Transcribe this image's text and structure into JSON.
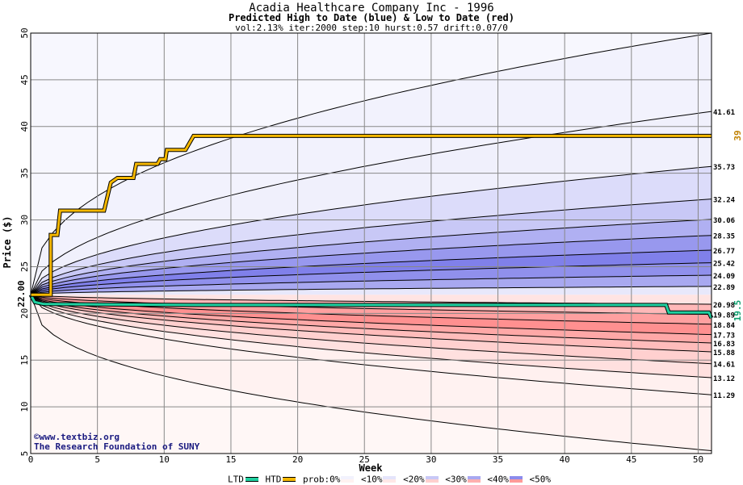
{
  "chart_data": {
    "type": "area",
    "title": "Acadia Healthcare Company Inc - 1996",
    "subtitle": "Predicted High to Date (blue) &  Low to Date (red)",
    "params": "vol:2.13% iter:2000 step:10 hurst:0.57 drift:0.07/0",
    "xlabel": "Week",
    "ylabel": "Price ($)",
    "xlim": [
      0,
      51
    ],
    "ylim": [
      5,
      50
    ],
    "x_ticks": [
      0,
      5,
      10,
      15,
      20,
      25,
      30,
      35,
      40,
      45,
      50
    ],
    "y_ticks": [
      5,
      10,
      15,
      20,
      25,
      30,
      35,
      40,
      45,
      50
    ],
    "grid": true,
    "start_price": 22.0,
    "start_label": "22.00",
    "right_labels": [
      "41.61",
      "35.73",
      "32.24",
      "30.06",
      "28.35",
      "26.77",
      "25.42",
      "24.09",
      "22.89",
      "20.98",
      "19.89",
      "18.84",
      "17.73",
      "16.83",
      "15.88",
      "14.61",
      "13.12",
      "11.29"
    ],
    "upper_curves_end": [
      41.61,
      35.73,
      32.24,
      30.06,
      28.35,
      26.77,
      25.42,
      24.09,
      22.89
    ],
    "lower_curves_end": [
      20.98,
      19.89,
      18.84,
      17.73,
      16.83,
      15.88,
      14.61,
      13.12,
      11.29
    ],
    "outer_upper_end": 50,
    "outer_lower_end": 5.3,
    "band_colors_blue": [
      "#f0f0fc",
      "#dcdcfa",
      "#c8c8f6",
      "#b0b0f2",
      "#9898ee",
      "#8080ea",
      "#9090ec",
      "#a8a8f0"
    ],
    "band_colors_red": [
      "#fff0ef",
      "#ffe0df",
      "#ffd0cf",
      "#ffbcbb",
      "#ffa8a7",
      "#ff9090",
      "#ffa0a0",
      "#ffb8b8"
    ],
    "outer_upper_color": "#f2f2fd",
    "outer_lower_color": "#fff2f1",
    "htd": {
      "color": "#f5b800",
      "name": "HTD",
      "end_value": 39,
      "end_label": "39",
      "points": [
        [
          0,
          22
        ],
        [
          1.5,
          22
        ],
        [
          1.5,
          28.4
        ],
        [
          2,
          28.4
        ],
        [
          2.2,
          31
        ],
        [
          5.5,
          31
        ],
        [
          6,
          34
        ],
        [
          6.5,
          34.5
        ],
        [
          7.7,
          34.5
        ],
        [
          7.9,
          36
        ],
        [
          9.5,
          36
        ],
        [
          9.7,
          36.5
        ],
        [
          10.1,
          36.5
        ],
        [
          10.2,
          37.5
        ],
        [
          11.6,
          37.5
        ],
        [
          12.2,
          39
        ],
        [
          51,
          39
        ]
      ]
    },
    "ltd": {
      "color": "#20d0a0",
      "name": "LTD",
      "end_value": 19.5,
      "end_label": "19.5",
      "points": [
        [
          0,
          22
        ],
        [
          0.3,
          21.2
        ],
        [
          1,
          21
        ],
        [
          12,
          20.9
        ],
        [
          47.6,
          20.9
        ],
        [
          47.8,
          20.1
        ],
        [
          50.8,
          20.1
        ],
        [
          51,
          19.5
        ]
      ]
    },
    "legend": {
      "ltd": "LTD",
      "htd": "HTD",
      "prob": "prob:0%",
      "b10": "<10%",
      "b20": "<20%",
      "b30": "<30%",
      "b40": "<40%",
      "b50": "<50%"
    }
  },
  "watermark": {
    "line1": "www.textbiz.org",
    "line2": "The Research Foundation of SUNY",
    "copyright": "©"
  }
}
